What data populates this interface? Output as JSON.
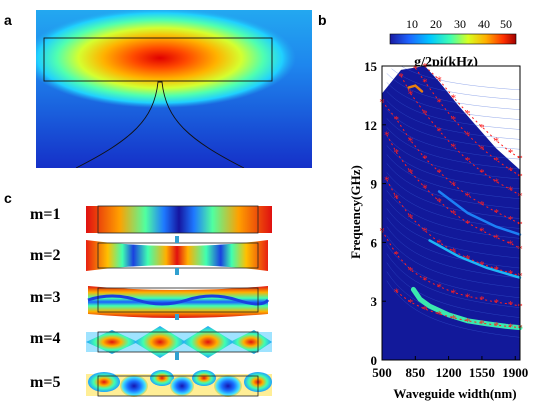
{
  "figure": {
    "panels": {
      "a": "a",
      "b": "b",
      "c": "c"
    },
    "mode_labels": [
      "m=1",
      "m=2",
      "m=3",
      "m=4",
      "m=5"
    ],
    "colorbar": {
      "ticks": [
        "10",
        "20",
        "30",
        "40",
        "50"
      ],
      "title": "g/2pi(kHz)",
      "colors": [
        "#1a1aa0",
        "#1e64ff",
        "#00c8ff",
        "#40ffb0",
        "#d8ff20",
        "#ffb000",
        "#ff3000",
        "#a00000"
      ]
    }
  },
  "chart_data": {
    "type": "heatmap",
    "xlabel": "Waveguide width(nm)",
    "ylabel": "Frequency(GHz)",
    "x_ticks": [
      "500",
      "850",
      "1200",
      "1550",
      "1900"
    ],
    "y_ticks": [
      "0",
      "3",
      "6",
      "9",
      "12",
      "15"
    ],
    "xlim": [
      500,
      1950
    ],
    "ylim": [
      0,
      15
    ],
    "series": [
      {
        "x": [
          650,
          800,
          950,
          1100,
          1250,
          1400,
          1550,
          1700,
          1850,
          1950
        ],
        "y": [
          3.5,
          2.95,
          2.6,
          2.35,
          2.15,
          2.0,
          1.88,
          1.78,
          1.7,
          1.65
        ]
      },
      {
        "x": [
          500,
          650,
          800,
          950,
          1100,
          1250,
          1400,
          1550,
          1700,
          1850,
          1950
        ],
        "y": [
          6.6,
          5.4,
          4.6,
          4.1,
          3.75,
          3.45,
          3.25,
          3.1,
          2.95,
          2.85,
          2.75
        ]
      },
      {
        "x": [
          550,
          650,
          800,
          950,
          1100,
          1250,
          1400,
          1550,
          1700,
          1850,
          1950
        ],
        "y": [
          9.2,
          8.3,
          7.3,
          6.6,
          6.0,
          5.55,
          5.2,
          4.9,
          4.65,
          4.45,
          4.3
        ]
      },
      {
        "x": [
          550,
          650,
          800,
          950,
          1100,
          1250,
          1400,
          1550,
          1700,
          1850,
          1950
        ],
        "y": [
          11.5,
          10.6,
          9.6,
          8.8,
          8.1,
          7.5,
          7.0,
          6.6,
          6.25,
          5.95,
          5.7
        ]
      },
      {
        "x": [
          500,
          650,
          800,
          950,
          1100,
          1250,
          1400,
          1550,
          1700,
          1850,
          1950
        ],
        "y": [
          13.2,
          12.3,
          11.2,
          10.3,
          9.6,
          8.95,
          8.4,
          7.95,
          7.55,
          7.2,
          6.95
        ]
      },
      {
        "x": [
          700,
          800,
          950,
          1100,
          1250,
          1400,
          1550,
          1700,
          1850,
          1950
        ],
        "y": [
          14.5,
          13.6,
          12.6,
          11.7,
          10.9,
          10.2,
          9.6,
          9.1,
          8.7,
          8.4
        ]
      },
      {
        "x": [
          850,
          950,
          1100,
          1250,
          1400,
          1550,
          1700,
          1850,
          1950
        ],
        "y": [
          14.9,
          14.2,
          13.2,
          12.3,
          11.5,
          10.8,
          10.2,
          9.7,
          9.4
        ]
      },
      {
        "x": [
          950,
          1100,
          1250,
          1400,
          1550,
          1700,
          1850,
          1950
        ],
        "y": [
          15.0,
          14.3,
          13.4,
          12.6,
          11.9,
          11.2,
          10.6,
          10.3
        ]
      }
    ],
    "highlight": [
      {
        "x": [
          830,
          900,
          1000,
          1200,
          1400,
          1600,
          1800,
          1950
        ],
        "y": [
          3.6,
          3.1,
          2.75,
          2.3,
          2.0,
          1.85,
          1.72,
          1.65
        ],
        "value": 30
      },
      {
        "x": [
          1000,
          1300,
          1600,
          1950
        ],
        "y": [
          6.1,
          5.3,
          4.7,
          4.2
        ],
        "value": 20
      },
      {
        "x": [
          1100,
          1400,
          1700,
          1950
        ],
        "y": [
          8.6,
          7.5,
          6.8,
          6.4
        ],
        "value": 15
      },
      {
        "x": [
          780,
          850,
          920
        ],
        "y": [
          13.9,
          14.0,
          13.7
        ],
        "value": 45
      }
    ]
  }
}
